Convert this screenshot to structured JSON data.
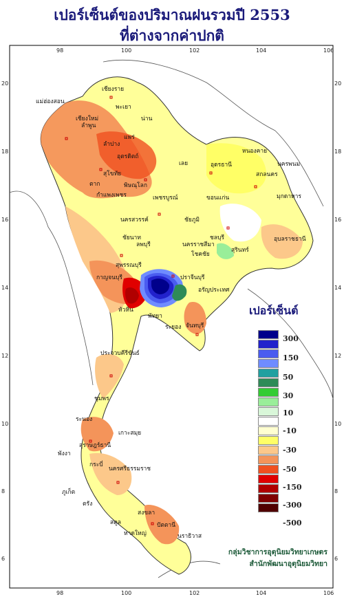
{
  "title": {
    "line1": "เปอร์เซ็นต์ของปริมาณฝนรวมปี  2553",
    "line2": "ที่ต่างจากค่าปกติ"
  },
  "axes": {
    "lon_ticks": [
      "98",
      "100",
      "102",
      "104",
      "106"
    ],
    "lat_ticks": [
      "20",
      "18",
      "16",
      "14",
      "12",
      "10",
      "8",
      "6"
    ]
  },
  "legend": {
    "title": "เปอร์เซ็นต์",
    "bins": [
      {
        "color": "#00008b"
      },
      {
        "color": "#2222cc"
      },
      {
        "color": "#4a5cf0"
      },
      {
        "color": "#6f8cff"
      },
      {
        "color": "#20a0a0"
      },
      {
        "color": "#2e8b57"
      },
      {
        "color": "#33cc33"
      },
      {
        "color": "#99ee99"
      },
      {
        "color": "#d9f7d9"
      },
      {
        "color": "#ffffff"
      },
      {
        "color": "#ffffd0"
      },
      {
        "color": "#ffff66"
      },
      {
        "color": "#fcc88a"
      },
      {
        "color": "#f4945a"
      },
      {
        "color": "#f05020"
      },
      {
        "color": "#e00000"
      },
      {
        "color": "#b00000"
      },
      {
        "color": "#800000"
      },
      {
        "color": "#500000"
      }
    ],
    "labels": [
      "300",
      "150",
      "50",
      "30",
      "10",
      "-10",
      "-30",
      "-50",
      "-150",
      "-300",
      "-500"
    ]
  },
  "places": [
    {
      "name": "เชียงราย"
    },
    {
      "name": "แม่ฮ่องสอน"
    },
    {
      "name": "เชียงใหม่"
    },
    {
      "name": "ลำพูน"
    },
    {
      "name": "พะเยา"
    },
    {
      "name": "น่าน"
    },
    {
      "name": "แพร่"
    },
    {
      "name": "ลำปาง"
    },
    {
      "name": "อุตรดิตถ์"
    },
    {
      "name": "ตาก"
    },
    {
      "name": "สุโขทัย"
    },
    {
      "name": "พิษณุโลก"
    },
    {
      "name": "กำแพงเพชร"
    },
    {
      "name": "เพชรบูรณ์"
    },
    {
      "name": "นครสวรรค์"
    },
    {
      "name": "ชัยภูมิ"
    },
    {
      "name": "หนองคาย"
    },
    {
      "name": "อุดรธานี"
    },
    {
      "name": "นครพนม"
    },
    {
      "name": "สกลนคร"
    },
    {
      "name": "เลย"
    },
    {
      "name": "มุกดาหาร"
    },
    {
      "name": "ขอนแก่น"
    },
    {
      "name": "อุบลราชธานี"
    },
    {
      "name": "สุรินทร์"
    },
    {
      "name": "ชลบุรี"
    },
    {
      "name": "นครราชสีมา"
    },
    {
      "name": "โชคชัย"
    },
    {
      "name": "ลพบุรี"
    },
    {
      "name": "สุพรรณบุรี"
    },
    {
      "name": "ชัยนาท"
    },
    {
      "name": "กาญจนบุรี"
    },
    {
      "name": "ปราจีนบุรี"
    },
    {
      "name": "อรัญประเทศ"
    },
    {
      "name": "พัทยา"
    },
    {
      "name": "ระยอง"
    },
    {
      "name": "จันทบุรี"
    },
    {
      "name": "หัวหิน"
    },
    {
      "name": "ประจวบคีรีขันธ์"
    },
    {
      "name": "ชุมพร"
    },
    {
      "name": "ระนอง"
    },
    {
      "name": "เกาะสมุย"
    },
    {
      "name": "สุราษฎร์ธานี"
    },
    {
      "name": "พังงา"
    },
    {
      "name": "ภูเก็ต"
    },
    {
      "name": "กระบี่"
    },
    {
      "name": "ตรัง"
    },
    {
      "name": "นครศรีธรรมราช"
    },
    {
      "name": "สตูล"
    },
    {
      "name": "สงขลา"
    },
    {
      "name": "ปัตตานี"
    },
    {
      "name": "นราธิวาส"
    },
    {
      "name": "หาดใหญ่"
    }
  ],
  "credits": {
    "line1": "กลุ่มวิชาการอุตุนิยมวิทยาเกษตร",
    "line2": "สำนักพัฒนาอุตุนิยมวิทยา"
  }
}
